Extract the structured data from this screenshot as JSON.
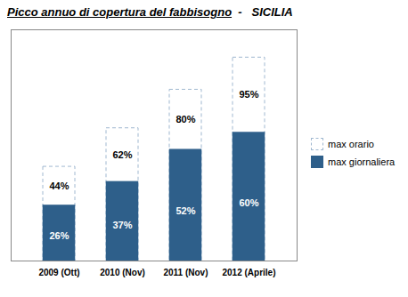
{
  "chart_data": {
    "type": "bar",
    "title": "Picco annuo di copertura del fabbisogno",
    "subtitle": "  -   SICILIA",
    "categories": [
      "2009 (Ott)",
      "2010 (Nov)",
      "2011 (Nov)",
      "2012 (Aprile)"
    ],
    "series": [
      {
        "name": "max orario",
        "color": "#FFFFFF",
        "values": [
          44,
          62,
          80,
          95
        ],
        "value_labels": [
          "44%",
          "62%",
          "80%",
          "95%"
        ]
      },
      {
        "name": "max giornaliera",
        "color": "#2E5F8A",
        "values": [
          26,
          37,
          52,
          60
        ],
        "value_labels": [
          "26%",
          "37%",
          "52%",
          "60%"
        ]
      }
    ],
    "ylim": [
      0,
      108
    ],
    "stacked": false,
    "data_labels": true,
    "tick_labels": "x",
    "grid": false,
    "legend": "right"
  }
}
